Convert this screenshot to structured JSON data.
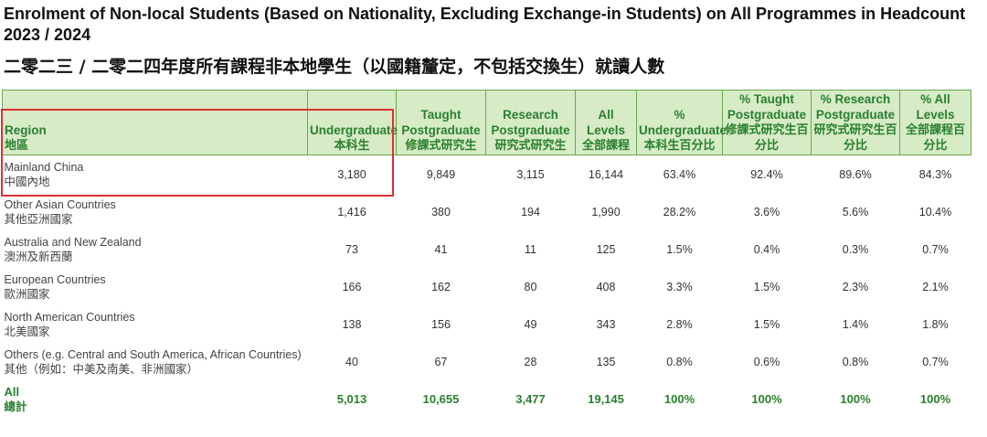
{
  "title": {
    "en": "Enrolment of Non-local Students (Based on Nationality, Excluding Exchange-in Students) on All Programmes in Headcount 2023 / 2024",
    "zh": "二零二三 / 二零二四年度所有課程非本地學生（以國籍釐定，不包括交換生）就讀人數"
  },
  "headers": [
    {
      "en": "Region",
      "zh": "地區"
    },
    {
      "en": "Undergraduate",
      "zh": "本科生"
    },
    {
      "en": "Taught Postgraduate",
      "zh": "修課式研究生"
    },
    {
      "en": "Research Postgraduate",
      "zh": "研究式研究生"
    },
    {
      "en": "All Levels",
      "zh": "全部課程"
    },
    {
      "en": "% Undergraduate",
      "zh": "本科生百分比"
    },
    {
      "en": "% Taught Postgraduate",
      "zh": "修課式研究生百分比"
    },
    {
      "en": "% Research Postgraduate",
      "zh": "研究式研究生百分比"
    },
    {
      "en": "% All Levels",
      "zh": "全部課程百分比"
    }
  ],
  "rows": [
    {
      "en": "Mainland China",
      "zh": "中國內地",
      "cells": [
        "3,180",
        "9,849",
        "3,115",
        "16,144",
        "63.4%",
        "92.4%",
        "89.6%",
        "84.3%"
      ]
    },
    {
      "en": "Other Asian Countries",
      "zh": "其他亞洲國家",
      "cells": [
        "1,416",
        "380",
        "194",
        "1,990",
        "28.2%",
        "3.6%",
        "5.6%",
        "10.4%"
      ]
    },
    {
      "en": "Australia and New Zealand",
      "zh": "澳洲及新西蘭",
      "cells": [
        "73",
        "41",
        "11",
        "125",
        "1.5%",
        "0.4%",
        "0.3%",
        "0.7%"
      ]
    },
    {
      "en": "European Countries",
      "zh": "歐洲國家",
      "cells": [
        "166",
        "162",
        "80",
        "408",
        "3.3%",
        "1.5%",
        "2.3%",
        "2.1%"
      ]
    },
    {
      "en": "North American Countries",
      "zh": "北美國家",
      "cells": [
        "138",
        "156",
        "49",
        "343",
        "2.8%",
        "1.5%",
        "1.4%",
        "1.8%"
      ]
    },
    {
      "en": "Others (e.g. Central and South America, African Countries)",
      "zh": "其他（例如：中美及南美、非洲國家）",
      "cells": [
        "40",
        "67",
        "28",
        "135",
        "0.8%",
        "0.6%",
        "0.8%",
        "0.7%"
      ]
    }
  ],
  "total": {
    "en": "All",
    "zh": "總計",
    "cells": [
      "5,013",
      "10,655",
      "3,477",
      "19,145",
      "100%",
      "100%",
      "100%",
      "100%"
    ]
  },
  "colors": {
    "header_bg": "#d6ebc6",
    "header_text": "#2a7f2f",
    "header_border": "#6aa84f",
    "highlight": "#e03030"
  }
}
